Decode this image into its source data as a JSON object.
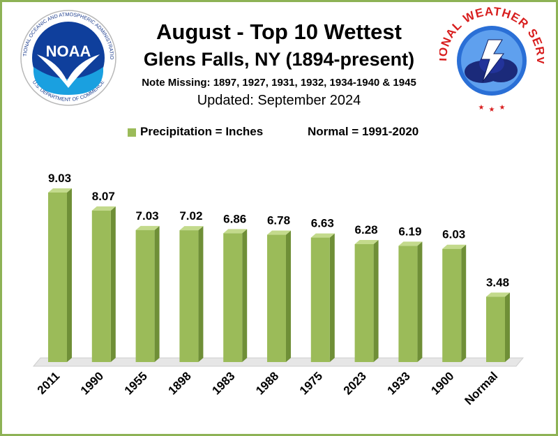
{
  "title": "August - Top 10 Wettest",
  "subtitle": "Glens Falls, NY (1894-present)",
  "note": "Note Missing: 1897, 1927, 1931, 1932, 1934-1940 & 1945",
  "updated": "Updated: September 2024",
  "legend": {
    "series": "Precipitation = Inches",
    "normal": "Normal = 1991-2020"
  },
  "logos": {
    "noaa": {
      "center_text": "NOAA",
      "ring_text": "NATIONAL OCEANIC AND ATMOSPHERIC ADMINISTRATION",
      "bottom_text": "U.S. DEPARTMENT OF COMMERCE"
    },
    "nws": {
      "ring_text": "NATIONAL WEATHER SERVICE"
    }
  },
  "colors": {
    "bar_front": "#9bbb59",
    "bar_side": "#6f8f37",
    "bar_top": "#c3da8c",
    "border": "#8db255",
    "floor": "#e6e6e6"
  },
  "chart_data": {
    "type": "bar",
    "categories": [
      "2011",
      "1990",
      "1955",
      "1898",
      "1983",
      "1988",
      "1975",
      "2023",
      "1933",
      "1900",
      "Normal"
    ],
    "values": [
      9.03,
      8.07,
      7.03,
      7.02,
      6.86,
      6.78,
      6.63,
      6.28,
      6.19,
      6.03,
      3.48
    ],
    "data_labels": [
      "9.03",
      "8.07",
      "7.03",
      "7.02",
      "6.86",
      "6.78",
      "6.63",
      "6.28",
      "6.19",
      "6.03",
      "3.48"
    ],
    "ylim": [
      0,
      9.03
    ],
    "grid": false,
    "legend_position": "top"
  }
}
